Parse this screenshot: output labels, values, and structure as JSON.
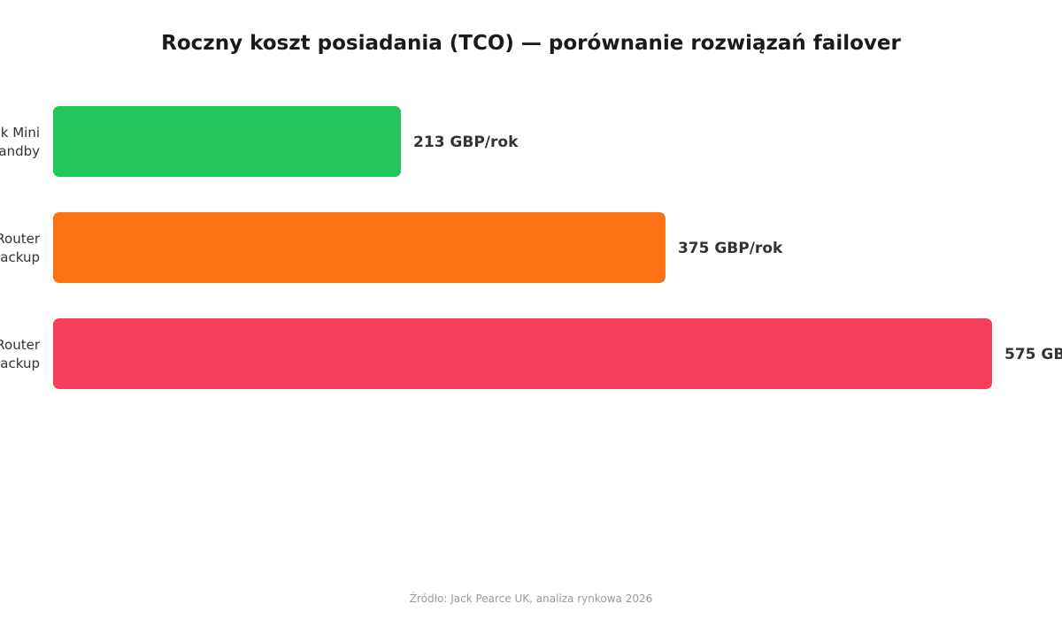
{
  "chart_data": {
    "type": "bar",
    "orientation": "horizontal",
    "title": "Roczny koszt posiadania (TCO) — porównanie rozwiązań failover",
    "categories": [
      [
        "k Mini",
        "andby"
      ],
      [
        "Router",
        "ackup"
      ],
      [
        "Router",
        "ackup"
      ]
    ],
    "values": [
      213,
      375,
      575
    ],
    "value_labels": [
      "213 GBP/rok",
      "375 GBP/rok",
      "575 GB"
    ],
    "colors": [
      "#22c55e",
      "#f97316",
      "#f43f5e"
    ],
    "xlim": [
      0,
      575
    ],
    "grid": false,
    "xlabel": "",
    "ylabel": ""
  },
  "source": "Źródło: Jack Pearce UK, analiza rynkowa 2026"
}
